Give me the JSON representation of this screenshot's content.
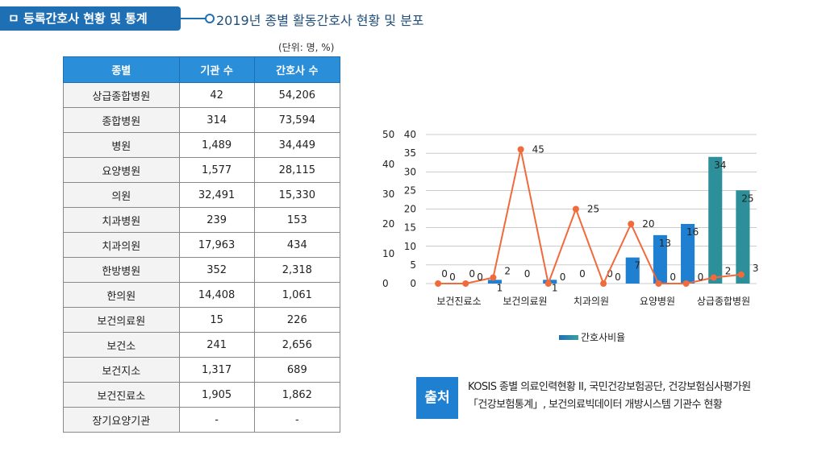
{
  "header": {
    "badge": "ㅁ 등록간호사 현황 및 통계",
    "subtitle": "2019년 종별 활동간호사 현황 및 분포"
  },
  "table": {
    "unit": "(단위: 명, %)",
    "columns": [
      "종별",
      "기관 수",
      "간호사 수"
    ],
    "rows": [
      [
        "상급종합병원",
        "42",
        "54,206"
      ],
      [
        "종합병원",
        "314",
        "73,594"
      ],
      [
        "병원",
        "1,489",
        "34,449"
      ],
      [
        "요양병원",
        "1,577",
        "28,115"
      ],
      [
        "의원",
        "32,491",
        "15,330"
      ],
      [
        "치과병원",
        "239",
        "153"
      ],
      [
        "치과의원",
        "17,963",
        "434"
      ],
      [
        "한방병원",
        "352",
        "2,318"
      ],
      [
        "한의원",
        "14,408",
        "1,061"
      ],
      [
        "보건의료원",
        "15",
        "226"
      ],
      [
        "보건소",
        "241",
        "2,656"
      ],
      [
        "보건지소",
        "1,317",
        "689"
      ],
      [
        "보건진료소",
        "1,905",
        "1,862"
      ],
      [
        "장기요양기관",
        "-",
        "-"
      ]
    ]
  },
  "chart_data": {
    "type": "bar",
    "categories": [
      "보건진료소",
      "",
      "보건의료원",
      "",
      "",
      "치과의원",
      "",
      "",
      "요양병원",
      "",
      "",
      "상급종합병원"
    ],
    "x_tick_labels": [
      "보건진료소",
      "보건의료원",
      "치과의원",
      "요양병원",
      "상급종합병원"
    ],
    "left_axis_ticks": [
      "50",
      "40",
      "30",
      "20",
      "10",
      "0"
    ],
    "ylim": [
      0,
      40
    ],
    "y_ticks": [
      0,
      5,
      10,
      15,
      20,
      25,
      30,
      35,
      40
    ],
    "grid": true,
    "legend_position": "bottom",
    "series": [
      {
        "name": "간호사비율",
        "type": "bar",
        "values": [
          0,
          0,
          1,
          0,
          1,
          0,
          0,
          7,
          13,
          16,
          34,
          25
        ],
        "labels": [
          "0",
          "0",
          "1",
          "0",
          "1",
          "0",
          "0",
          "7",
          "13",
          "16",
          "34",
          "25"
        ],
        "color": "#1f7fd0"
      },
      {
        "type": "line",
        "values": [
          0,
          0,
          2,
          45,
          0,
          25,
          0,
          20,
          0,
          0,
          2,
          3
        ],
        "labels": [
          "0",
          "0",
          "2",
          "45",
          "0",
          "25",
          "0",
          "20",
          "0",
          "0",
          "2",
          "3"
        ],
        "color": "#f06a3c"
      }
    ]
  },
  "source": {
    "badge": "출처",
    "line1": "KOSIS 종별 의료인력현황 II, 국민건강보험공단, 건강보험심사평가원",
    "line2": "「건강보험통계」, 보건의료빅데이터 개방시스템 기관수 현황"
  }
}
